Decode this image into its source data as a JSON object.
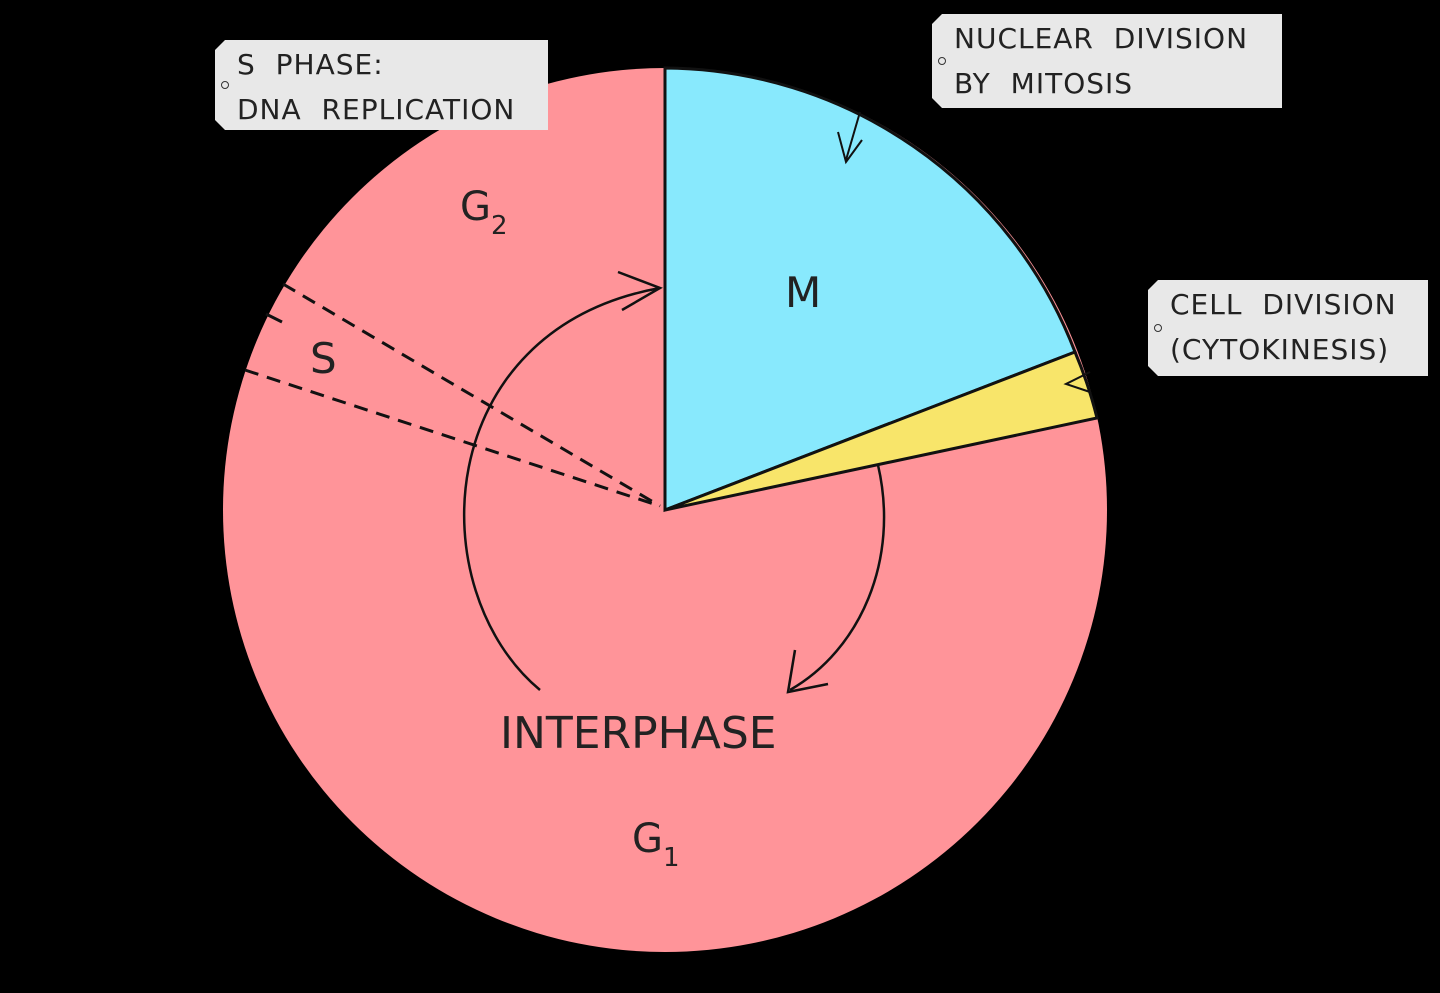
{
  "colors": {
    "background": "#000000",
    "interphase": "#ff9499",
    "mitosis": "#88e9fd",
    "cytokinesis": "#f8e56a",
    "label_box": "#e8e8e8"
  },
  "phases": {
    "g2": "G",
    "g2_sub": "2",
    "s": "S",
    "m": "M",
    "g1": "G",
    "g1_sub": "1",
    "interphase": "INTERPHASE"
  },
  "labels": {
    "s_phase": [
      "S PHASE:",
      "DNA REPLICATION"
    ],
    "nuclear_division": [
      "NUCLEAR DIVISION",
      "BY MITOSIS"
    ],
    "cell_division": [
      "CELL DIVISION",
      "(CYTOKINESIS)"
    ]
  }
}
